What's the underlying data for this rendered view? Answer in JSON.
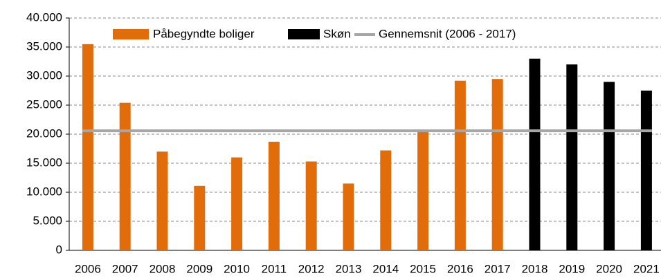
{
  "chart_data": {
    "type": "bar",
    "categories": [
      "2006",
      "2007",
      "2008",
      "2009",
      "2010",
      "2011",
      "2012",
      "2013",
      "2014",
      "2015",
      "2016",
      "2017",
      "2018",
      "2019",
      "2020",
      "2021"
    ],
    "series": [
      {
        "name": "Påbegyndte boliger",
        "color": "#e36c0a",
        "values": [
          35500,
          25400,
          17000,
          11100,
          16000,
          18700,
          15300,
          11500,
          17200,
          20500,
          29200,
          29500,
          null,
          null,
          null,
          null
        ]
      },
      {
        "name": "Skøn",
        "color": "#000000",
        "values": [
          null,
          null,
          null,
          null,
          null,
          null,
          null,
          null,
          null,
          null,
          null,
          null,
          33000,
          32000,
          29000,
          27500
        ]
      }
    ],
    "reference_line": {
      "name": "Gennemsnit (2006 - 2017)",
      "color": "#a6a6a6",
      "value": 20575
    },
    "ylim": [
      0,
      40000
    ],
    "yticks": [
      0,
      {
        "value": 5000,
        "label": "5.000"
      },
      {
        "value": 10000,
        "label": "10.000"
      },
      {
        "value": 15000,
        "label": "15.000"
      },
      {
        "value": 20000,
        "label": "20.000"
      },
      {
        "value": 25000,
        "label": "25.000"
      },
      {
        "value": 30000,
        "label": "30.000"
      },
      {
        "value": 35000,
        "label": "35.000"
      },
      {
        "value": 40000,
        "label": "40.000"
      }
    ],
    "grid": true,
    "legend": "top"
  }
}
